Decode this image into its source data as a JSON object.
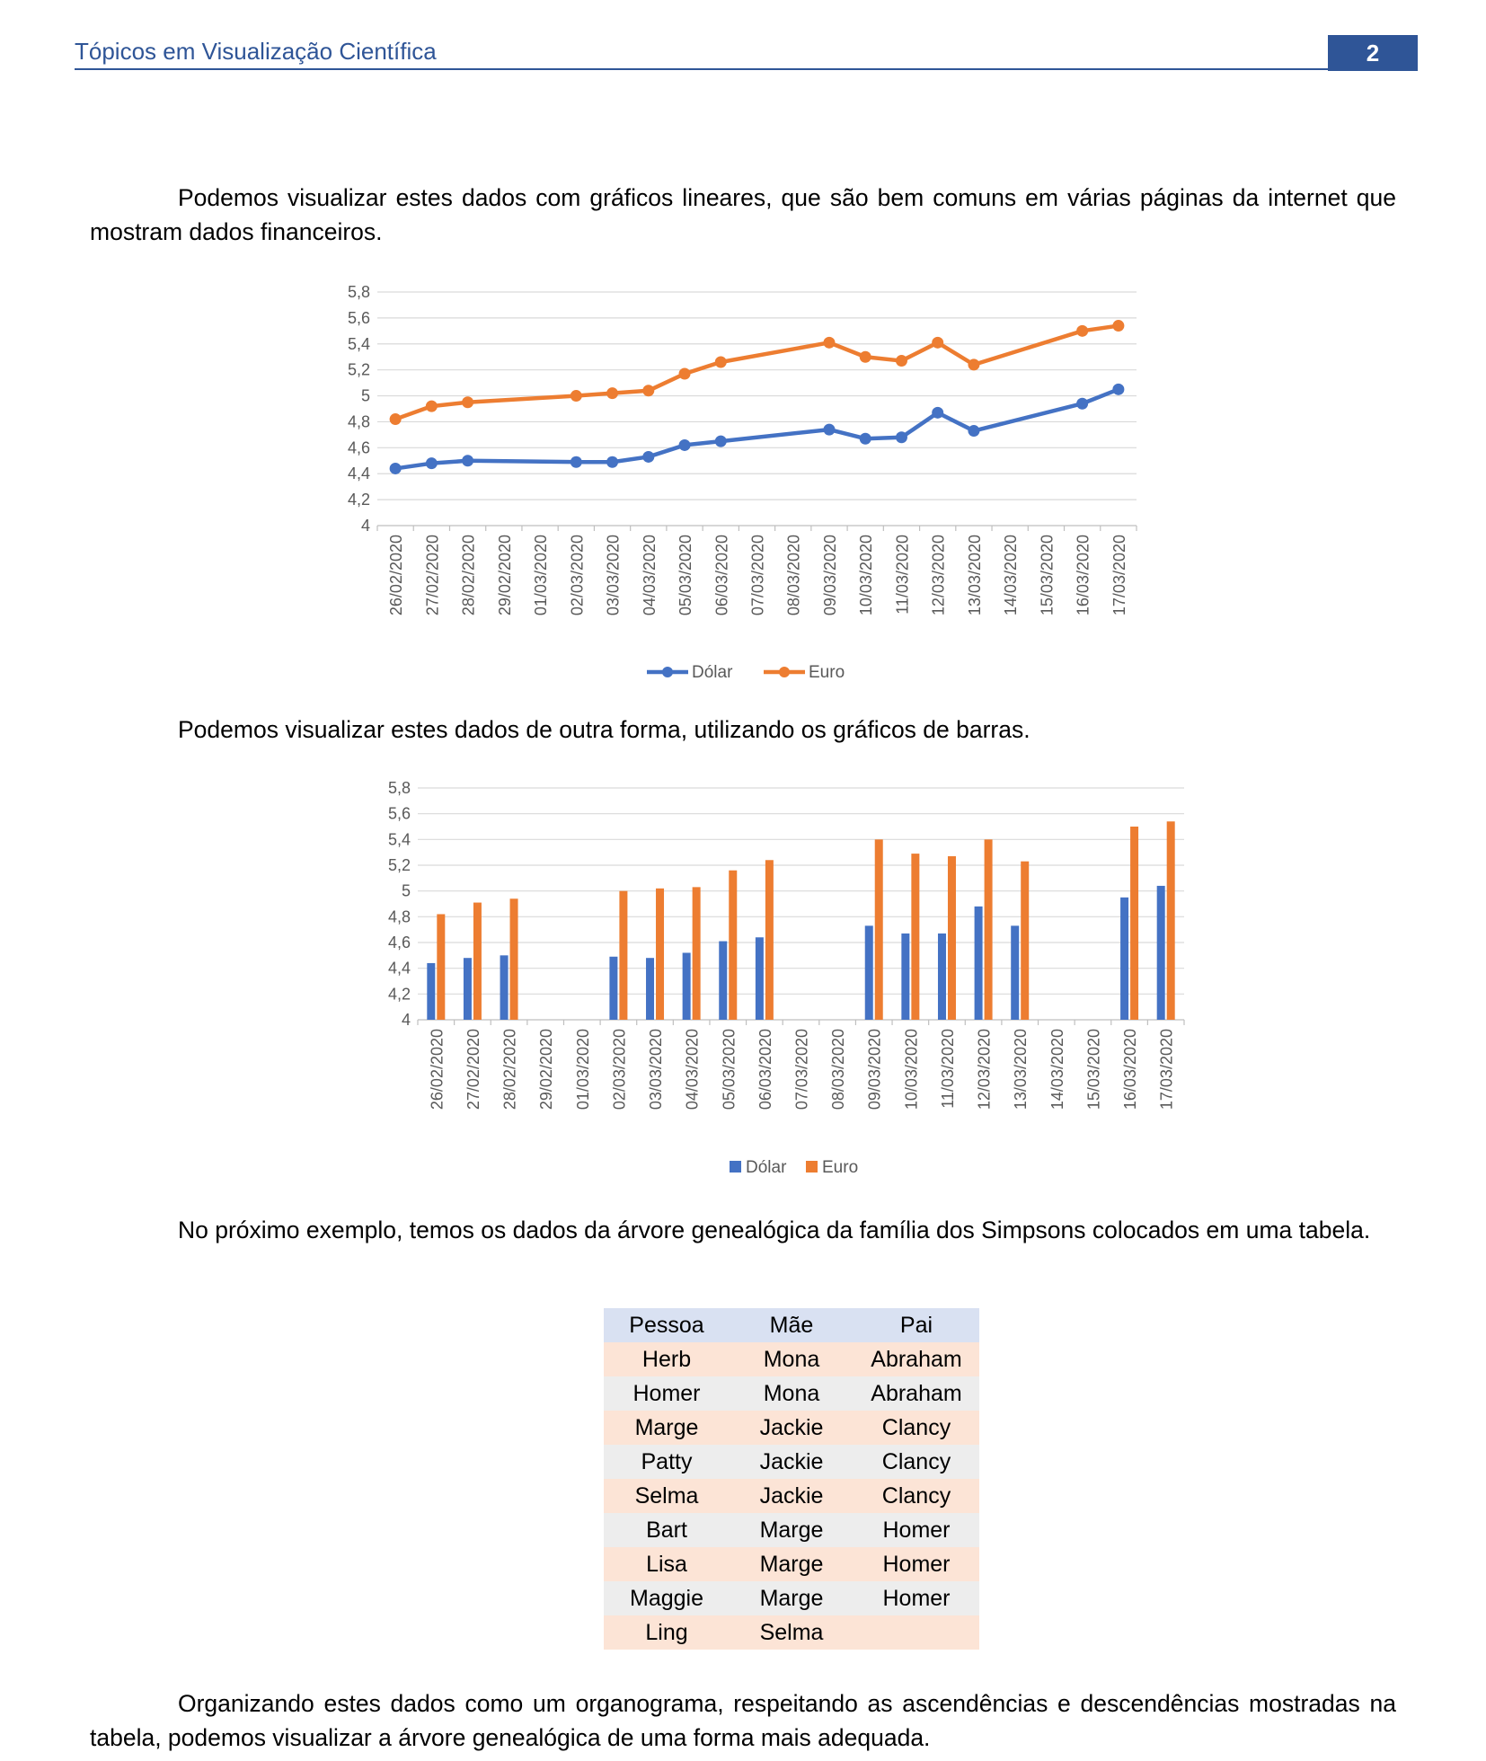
{
  "header": {
    "title": "Tópicos em Visualização Científica",
    "page_number": "2",
    "accent_color": "#2f5597"
  },
  "paragraphs": {
    "p1": "Podemos visualizar estes dados com gráficos lineares, que são bem comuns em várias páginas da internet que mostram dados financeiros.",
    "p2": "Podemos visualizar estes dados de outra forma, utilizando os gráficos de barras.",
    "p3": "No próximo exemplo, temos os dados da árvore genealógica da família dos Simpsons colocados em uma tabela.",
    "p4": "Organizando estes dados como um organograma, respeitando as ascendências e descendências mostradas na tabela, podemos visualizar a árvore genealógica de uma forma mais adequada."
  },
  "chart_data": [
    {
      "type": "line",
      "categories": [
        "26/02/2020",
        "27/02/2020",
        "28/02/2020",
        "29/02/2020",
        "01/03/2020",
        "02/03/2020",
        "03/03/2020",
        "04/03/2020",
        "05/03/2020",
        "06/03/2020",
        "07/03/2020",
        "08/03/2020",
        "09/03/2020",
        "10/03/2020",
        "11/03/2020",
        "12/03/2020",
        "13/03/2020",
        "14/03/2020",
        "15/03/2020",
        "16/03/2020",
        "17/03/2020"
      ],
      "series": [
        {
          "name": "Dólar",
          "color": "#4472c4",
          "values": [
            4.44,
            4.48,
            4.5,
            null,
            null,
            4.49,
            4.49,
            4.53,
            4.62,
            4.65,
            null,
            null,
            4.74,
            4.67,
            4.68,
            4.87,
            4.73,
            null,
            null,
            4.94,
            5.05
          ]
        },
        {
          "name": "Euro",
          "color": "#ed7d31",
          "values": [
            4.82,
            4.92,
            4.95,
            null,
            null,
            5.0,
            5.02,
            5.04,
            5.17,
            5.26,
            null,
            null,
            5.41,
            5.3,
            5.27,
            5.41,
            5.24,
            null,
            null,
            5.5,
            5.54
          ]
        }
      ],
      "yticks": [
        "4",
        "4,2",
        "4,4",
        "4,6",
        "4,8",
        "5",
        "5,2",
        "5,4",
        "5,6",
        "5,8"
      ],
      "ylim": [
        4,
        5.8
      ],
      "grid": true,
      "legend": "bottom"
    },
    {
      "type": "bar",
      "categories": [
        "26/02/2020",
        "27/02/2020",
        "28/02/2020",
        "29/02/2020",
        "01/03/2020",
        "02/03/2020",
        "03/03/2020",
        "04/03/2020",
        "05/03/2020",
        "06/03/2020",
        "07/03/2020",
        "08/03/2020",
        "09/03/2020",
        "10/03/2020",
        "11/03/2020",
        "12/03/2020",
        "13/03/2020",
        "14/03/2020",
        "15/03/2020",
        "16/03/2020",
        "17/03/2020"
      ],
      "series": [
        {
          "name": "Dólar",
          "color": "#4472c4",
          "values": [
            4.44,
            4.48,
            4.5,
            null,
            null,
            4.49,
            4.48,
            4.52,
            4.61,
            4.64,
            null,
            null,
            4.73,
            4.67,
            4.67,
            4.88,
            4.73,
            null,
            null,
            4.95,
            5.04
          ]
        },
        {
          "name": "Euro",
          "color": "#ed7d31",
          "values": [
            4.82,
            4.91,
            4.94,
            null,
            null,
            5.0,
            5.02,
            5.03,
            5.16,
            5.24,
            null,
            null,
            5.4,
            5.29,
            5.27,
            5.4,
            5.23,
            null,
            null,
            5.5,
            5.54
          ]
        }
      ],
      "yticks": [
        "4",
        "4,2",
        "4,4",
        "4,6",
        "4,8",
        "5",
        "5,2",
        "5,4",
        "5,6",
        "5,8"
      ],
      "ylim": [
        4,
        5.8
      ],
      "grid": true,
      "legend": "bottom"
    }
  ],
  "table": {
    "headers": [
      "Pessoa",
      "Mãe",
      "Pai"
    ],
    "rows": [
      [
        "Herb",
        "Mona",
        "Abraham"
      ],
      [
        "Homer",
        "Mona",
        "Abraham"
      ],
      [
        "Marge",
        "Jackie",
        "Clancy"
      ],
      [
        "Patty",
        "Jackie",
        "Clancy"
      ],
      [
        "Selma",
        "Jackie",
        "Clancy"
      ],
      [
        "Bart",
        "Marge",
        "Homer"
      ],
      [
        "Lisa",
        "Marge",
        "Homer"
      ],
      [
        "Maggie",
        "Marge",
        "Homer"
      ],
      [
        "Ling",
        "Selma",
        ""
      ]
    ]
  }
}
